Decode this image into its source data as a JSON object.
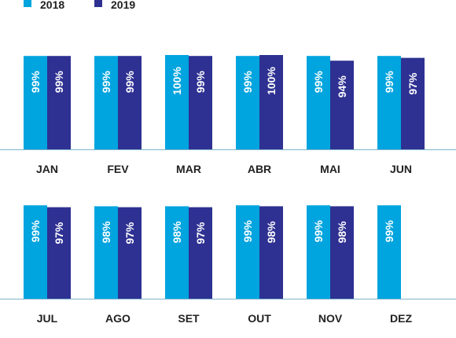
{
  "chart_data": {
    "type": "bar",
    "title": "",
    "xlabel": "",
    "ylabel": "",
    "ylim": [
      0,
      100
    ],
    "value_suffix": "%",
    "legend_position": "top-left",
    "grid": false,
    "series": [
      {
        "name": "2018",
        "color": "#00a4de"
      },
      {
        "name": "2019",
        "color": "#2e3192"
      }
    ],
    "panels": [
      {
        "categories": [
          "JAN",
          "FEV",
          "MAR",
          "ABR",
          "MAI",
          "JUN"
        ],
        "values": [
          [
            99,
            99,
            100,
            99,
            99,
            99
          ],
          [
            99,
            99,
            99,
            100,
            94,
            97
          ]
        ],
        "labels": [
          [
            "99%",
            "99%",
            "100%",
            "99%",
            "99%",
            "99%"
          ],
          [
            "99%",
            "99%",
            "99%",
            "100%",
            "94%",
            "97%"
          ]
        ]
      },
      {
        "categories": [
          "JUL",
          "AGO",
          "SET",
          "OUT",
          "NOV",
          "DEZ"
        ],
        "values": [
          [
            99,
            98,
            98,
            99,
            99,
            99
          ],
          [
            97,
            97,
            97,
            98,
            98,
            null
          ]
        ],
        "labels": [
          [
            "99%",
            "98%",
            "98%",
            "99%",
            "99%",
            "99%"
          ],
          [
            "97%",
            "97%",
            "97%",
            "98%",
            "98%",
            null
          ]
        ]
      }
    ],
    "axis_color": "#7fb3cc"
  }
}
